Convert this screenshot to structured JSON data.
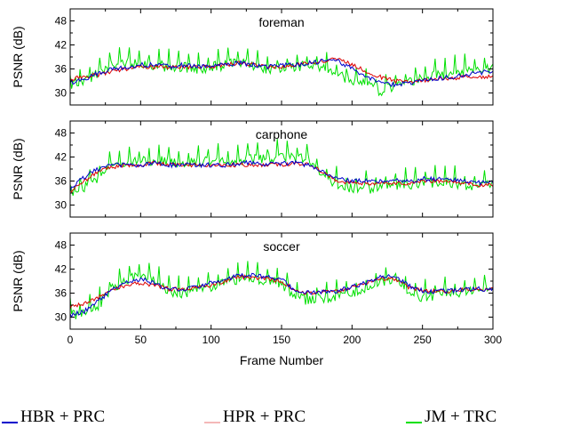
{
  "chart_data": {
    "type": "line",
    "xlabel": "Frame Number",
    "ylabel": "PSNR (dB)",
    "xlim": [
      0,
      300
    ],
    "ylim": [
      27,
      51
    ],
    "xticks": [
      0,
      50,
      100,
      150,
      200,
      250,
      300
    ],
    "yticks": [
      30,
      36,
      42,
      48
    ],
    "legend": "bottom",
    "legend_entries": [
      "HBR + PRC",
      "HPR + PRC",
      "JM + TRC"
    ],
    "series_colors": {
      "HBR + PRC": "#0000cc",
      "HPR + PRC": "#dd0000",
      "JM + TRC": "#00e000"
    },
    "legend_colors": {
      "HBR + PRC": "#0000cc",
      "HPR + PRC": "#f4b8b8",
      "JM + TRC": "#00e000"
    },
    "panels": [
      {
        "title": "foreman",
        "series": [
          {
            "name": "HBR + PRC",
            "x": [
              0,
              10,
              20,
              30,
              40,
              50,
              60,
              70,
              80,
              90,
              100,
              110,
              120,
              130,
              140,
              150,
              160,
              170,
              180,
              190,
              200,
              210,
              220,
              230,
              240,
              250,
              260,
              270,
              280,
              290,
              300
            ],
            "y": [
              32.5,
              33.5,
              35,
              36,
              36.5,
              37,
              37,
              36.5,
              37,
              36.5,
              37,
              37,
              37.5,
              37,
              36.5,
              37,
              37,
              37.5,
              38,
              38,
              36,
              34,
              32.5,
              32,
              32.5,
              33,
              33.5,
              34,
              34.5,
              35,
              35.5
            ]
          },
          {
            "name": "HPR + PRC",
            "x": [
              0,
              10,
              20,
              30,
              40,
              50,
              60,
              70,
              80,
              90,
              100,
              110,
              120,
              130,
              140,
              150,
              160,
              170,
              180,
              190,
              200,
              210,
              220,
              230,
              240,
              250,
              260,
              270,
              280,
              290,
              300
            ],
            "y": [
              33.5,
              34,
              34.5,
              35.5,
              36,
              36.5,
              36.5,
              36.5,
              36.5,
              36.5,
              36.5,
              37,
              37.5,
              37,
              36.5,
              36.5,
              37,
              37.5,
              38,
              38.5,
              37,
              35.5,
              34,
              33,
              33,
              33,
              33.5,
              33.5,
              34,
              34,
              34
            ]
          },
          {
            "name": "JM + TRC",
            "x": [
              0,
              10,
              20,
              30,
              40,
              50,
              60,
              70,
              80,
              90,
              100,
              110,
              120,
              130,
              140,
              150,
              160,
              170,
              180,
              190,
              200,
              210,
              220,
              230,
              240,
              250,
              260,
              270,
              280,
              290,
              300
            ],
            "y": [
              32,
              33,
              35,
              37,
              37.5,
              37.5,
              37,
              36.5,
              36.5,
              36,
              36.5,
              37,
              37.5,
              37,
              36,
              36,
              36.5,
              37,
              36.5,
              34.5,
              33,
              32,
              30.5,
              31.5,
              32.5,
              34,
              34.5,
              35,
              35.5,
              35.5,
              36.5
            ]
          }
        ]
      },
      {
        "title": "carphone",
        "series": [
          {
            "name": "HBR + PRC",
            "x": [
              0,
              10,
              20,
              30,
              40,
              50,
              60,
              70,
              80,
              90,
              100,
              110,
              120,
              130,
              140,
              150,
              160,
              170,
              180,
              190,
              200,
              210,
              220,
              230,
              240,
              250,
              260,
              270,
              280,
              290,
              300
            ],
            "y": [
              34,
              37,
              39,
              40,
              40,
              40,
              40.5,
              40,
              40,
              40,
              40,
              40,
              40.5,
              40.5,
              40,
              40.5,
              40.5,
              40,
              38,
              36.5,
              36,
              36,
              36,
              36,
              36,
              36.5,
              36.5,
              36.5,
              36,
              35.5,
              35.5
            ]
          },
          {
            "name": "HPR + PRC",
            "x": [
              0,
              10,
              20,
              30,
              40,
              50,
              60,
              70,
              80,
              90,
              100,
              110,
              120,
              130,
              140,
              150,
              160,
              170,
              180,
              190,
              200,
              210,
              220,
              230,
              240,
              250,
              260,
              270,
              280,
              290,
              300
            ],
            "y": [
              33.5,
              36,
              38.5,
              39.5,
              40,
              40,
              40.5,
              40,
              40,
              40,
              40,
              40,
              40,
              40,
              40,
              40,
              40.5,
              40,
              38,
              36,
              35.5,
              35.5,
              35.5,
              35.5,
              35.5,
              36,
              36,
              36,
              35.5,
              35,
              35
            ]
          },
          {
            "name": "JM + TRC",
            "x": [
              0,
              10,
              20,
              30,
              40,
              50,
              60,
              70,
              80,
              90,
              100,
              110,
              120,
              130,
              140,
              150,
              160,
              170,
              180,
              190,
              200,
              210,
              220,
              230,
              240,
              250,
              260,
              270,
              280,
              290,
              300
            ],
            "y": [
              33,
              34.5,
              37,
              39.5,
              40.5,
              41,
              41,
              41,
              40.5,
              40.5,
              41,
              41,
              41,
              41.5,
              41.5,
              42,
              42,
              41.5,
              37,
              35,
              34,
              34,
              34.5,
              35,
              35,
              35.5,
              35.5,
              35.5,
              35,
              35,
              35.5
            ]
          }
        ]
      },
      {
        "title": "soccer",
        "series": [
          {
            "name": "HBR + PRC",
            "x": [
              0,
              10,
              20,
              30,
              40,
              50,
              60,
              70,
              80,
              90,
              100,
              110,
              120,
              130,
              140,
              150,
              160,
              170,
              180,
              190,
              200,
              210,
              220,
              230,
              240,
              250,
              260,
              270,
              280,
              290,
              300
            ],
            "y": [
              30.5,
              31.5,
              34,
              37,
              38.5,
              39.5,
              38.5,
              37,
              37,
              37.5,
              38.5,
              39.5,
              40.5,
              40.5,
              40,
              39.5,
              36.5,
              36,
              36.5,
              36.5,
              37.5,
              38.5,
              40,
              40,
              38,
              36.5,
              36.5,
              36.5,
              37,
              37,
              37
            ]
          },
          {
            "name": "HPR + PRC",
            "x": [
              0,
              10,
              20,
              30,
              40,
              50,
              60,
              70,
              80,
              90,
              100,
              110,
              120,
              130,
              140,
              150,
              160,
              170,
              180,
              190,
              200,
              210,
              220,
              230,
              240,
              250,
              260,
              270,
              280,
              290,
              300
            ],
            "y": [
              32.5,
              33.5,
              35,
              37,
              38,
              38.5,
              38,
              37,
              37,
              37.5,
              38,
              39,
              40,
              40,
              39.5,
              39,
              36.5,
              36,
              36.5,
              36.5,
              37.5,
              38.5,
              39.5,
              39.5,
              37.5,
              36.5,
              36.5,
              36.5,
              37,
              37,
              37
            ]
          },
          {
            "name": "JM + TRC",
            "x": [
              0,
              10,
              20,
              30,
              40,
              50,
              60,
              70,
              80,
              90,
              100,
              110,
              120,
              130,
              140,
              150,
              160,
              170,
              180,
              190,
              200,
              210,
              220,
              230,
              240,
              250,
              260,
              270,
              280,
              290,
              300
            ],
            "y": [
              30.5,
              31,
              33,
              37,
              39.5,
              40.5,
              39,
              36.5,
              36,
              36.5,
              37.5,
              38.5,
              39.5,
              39.5,
              39,
              38.5,
              35,
              34,
              34.5,
              35,
              36,
              37,
              38.5,
              39,
              37,
              35,
              35.5,
              36,
              36.5,
              36.5,
              37.5
            ]
          }
        ]
      }
    ]
  }
}
